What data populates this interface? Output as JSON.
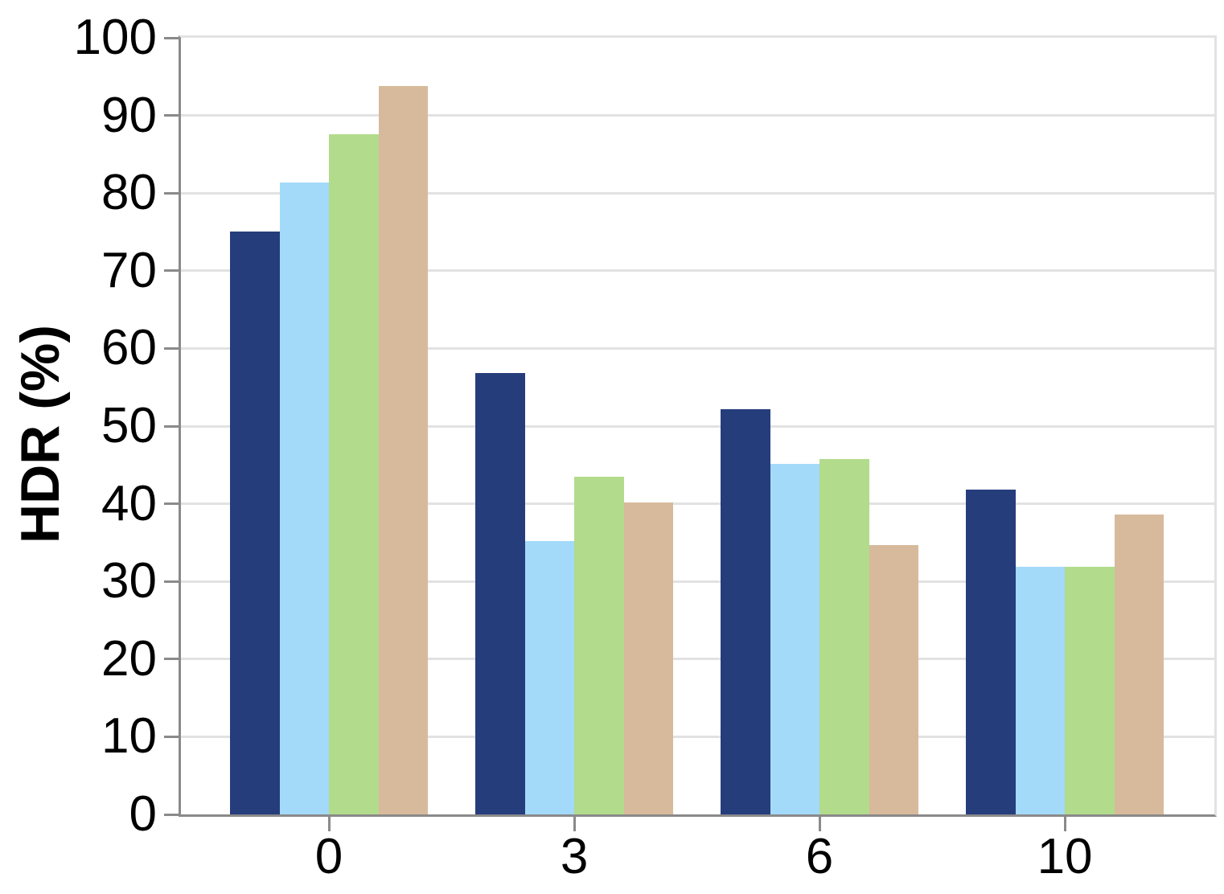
{
  "figure": {
    "background": "#ffffff"
  },
  "chart_data": {
    "type": "bar",
    "title": "",
    "xlabel": "",
    "ylabel": "HDR (%)",
    "categories": [
      "0",
      "3",
      "6",
      "10"
    ],
    "series": [
      {
        "name": "navy",
        "color": "#263d7c",
        "values": [
          75.1,
          56.8,
          52.2,
          41.8
        ]
      },
      {
        "name": "light-blue",
        "color": "#a3dafa",
        "values": [
          81.4,
          35.2,
          45.1,
          31.9
        ]
      },
      {
        "name": "green",
        "color": "#b2db8c",
        "values": [
          87.6,
          43.5,
          45.8,
          31.9
        ]
      },
      {
        "name": "tan",
        "color": "#d7ba9b",
        "values": [
          93.8,
          40.2,
          34.7,
          38.6
        ]
      }
    ],
    "ylim": [
      0,
      100
    ],
    "yticks": [
      0,
      10,
      20,
      30,
      40,
      50,
      60,
      70,
      80,
      90,
      100
    ],
    "grid": "horizontal",
    "legend": "none"
  },
  "style": {
    "axis_color": "#8a8a8a",
    "grid_color": "#e2e2e2",
    "text_color": "#000000"
  }
}
